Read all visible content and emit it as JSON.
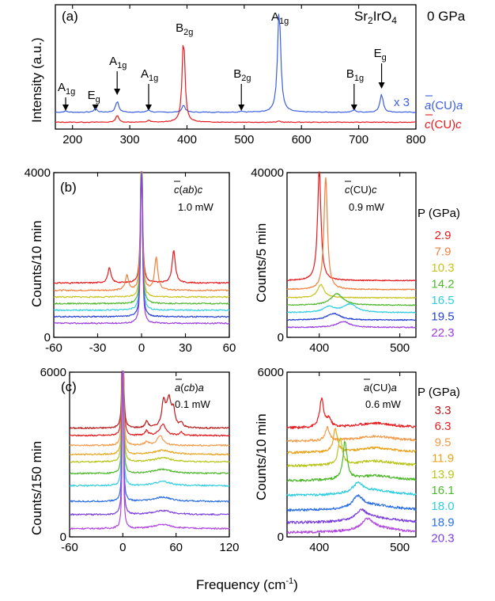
{
  "colors": {
    "p_a": [
      "#e8191d",
      "#f07f3c",
      "#c9c21a",
      "#4db82a",
      "#2fcde0",
      "#2340d8",
      "#9a3de0"
    ],
    "p_c": [
      "#b81a1a",
      "#e8191d",
      "#f39a48",
      "#e8a41c",
      "#b8c51a",
      "#4db82a",
      "#2fcde0",
      "#2a6ee6",
      "#7b3ee0",
      "#b146e0"
    ],
    "blue": "#3b5fe0",
    "red": "#e8191d"
  },
  "panel_a": {
    "label": "(a)",
    "sample": "Sr2IrO4",
    "pressure": "0 GPa",
    "ylabel": "Intensity (a.u.)",
    "scale_note": "x 3",
    "legend": [
      {
        "text": "a(CU)a",
        "bar": "a",
        "color": "#3b5fe0"
      },
      {
        "text": "c(CU)c",
        "bar": "c",
        "color": "#e8191d"
      }
    ],
    "peak_labels": [
      {
        "sym": "A",
        "sub": "1g",
        "x": 188
      },
      {
        "sym": "E",
        "sub": "g",
        "x": 240
      },
      {
        "sym": "A",
        "sub": "1g",
        "x": 278
      },
      {
        "sym": "A",
        "sub": "1g",
        "x": 333
      },
      {
        "sym": "B",
        "sub": "2g",
        "x": 394
      },
      {
        "sym": "B",
        "sub": "2g",
        "x": 495
      },
      {
        "sym": "A",
        "sub": "1g",
        "x": 561
      },
      {
        "sym": "B",
        "sub": "1g",
        "x": 692
      },
      {
        "sym": "E",
        "sub": "g",
        "x": 740
      }
    ]
  },
  "panel_b_left": {
    "label": "(b)",
    "config": "c(ab)c",
    "bar": "c",
    "power": "1.0 mW",
    "ylabel": "Counts/10 min"
  },
  "panel_b_right": {
    "config": "c(CU)c",
    "bar": "c",
    "power": "0.9 mW",
    "ylabel": "Counts/5 min"
  },
  "panel_c_left": {
    "label": "(c)",
    "config": "a(cb)a",
    "bar": "a",
    "power": "0.1 mW",
    "ylabel": "Counts/150 min"
  },
  "panel_c_right": {
    "config": "a(CU)a",
    "bar": "a",
    "power": "0.6 mW",
    "ylabel": "Counts/10 min"
  },
  "legend_b": {
    "title": "P (GPa)",
    "values": [
      "2.9",
      "7.9",
      "10.3",
      "14.2",
      "16.5",
      "19.5",
      "22.3"
    ]
  },
  "legend_c": {
    "title": "P (GPa)",
    "values": [
      "3.3",
      "6.3",
      "9.5",
      "11.9",
      "13.9",
      "16.1",
      "18.0",
      "18.9",
      "20.3"
    ]
  },
  "xlabel": "Frequency (cm",
  "xlabel_sup": "-1",
  "xlabel_end": ")",
  "chart_data": [
    {
      "type": "line",
      "panel": "a",
      "xlim": [
        170,
        800
      ],
      "ylim": [
        0,
        1
      ],
      "xticks": [
        "200",
        "300",
        "400",
        "500",
        "600",
        "700",
        "800"
      ],
      "series": [
        {
          "name": "a(CU)a",
          "color": "#3b5fe0",
          "peaks": [
            [
              188,
              0.01
            ],
            [
              240,
              0.03
            ],
            [
              278,
              0.09
            ],
            [
              333,
              0.02
            ],
            [
              394,
              0.06
            ],
            [
              495,
              0.01
            ],
            [
              561,
              0.85
            ],
            [
              692,
              0.02
            ],
            [
              740,
              0.15
            ]
          ]
        },
        {
          "name": "c(CU)c",
          "color": "#e8191d",
          "peaks": [
            [
              278,
              0.06
            ],
            [
              333,
              0.015
            ],
            [
              394,
              0.71
            ],
            [
              561,
              0.01
            ]
          ]
        }
      ]
    },
    {
      "type": "line",
      "panel": "b-left",
      "xlim": [
        -60,
        60
      ],
      "ylim": [
        0,
        4000
      ],
      "xticks": [
        "-60",
        "-30",
        "0",
        "30",
        "60"
      ],
      "yticks": [
        "0",
        "4000"
      ],
      "series_pressure_GPa": [
        2.9,
        7.9,
        10.3,
        14.2,
        16.5,
        19.5,
        22.3
      ],
      "peak_x_cm1": [
        22,
        10,
        null,
        null,
        null,
        null,
        null
      ]
    },
    {
      "type": "line",
      "panel": "b-right",
      "xlim": [
        360,
        520
      ],
      "ylim": [
        0,
        40000
      ],
      "xticks": [
        "400",
        "500"
      ],
      "yticks": [
        "0",
        "40000"
      ],
      "series_pressure_GPa": [
        2.9,
        7.9,
        10.3,
        14.2,
        16.5,
        19.5,
        22.3
      ],
      "peak_x_cm1": [
        400,
        408,
        402,
        422,
        438,
        418,
        430
      ]
    },
    {
      "type": "line",
      "panel": "c-left",
      "xlim": [
        -60,
        120
      ],
      "ylim": [
        0,
        6000
      ],
      "xticks": [
        "-60",
        "0",
        "60",
        "120"
      ],
      "yticks": [
        "0",
        "6000"
      ],
      "series_pressure_GPa": [
        3.3,
        6.3,
        9.5,
        11.9,
        13.9,
        16.1,
        18.0,
        18.9,
        20.3
      ]
    },
    {
      "type": "line",
      "panel": "c-right",
      "xlim": [
        360,
        520
      ],
      "ylim": [
        0,
        6000
      ],
      "xticks": [
        "400",
        "500"
      ],
      "yticks": [
        "0",
        "6000"
      ],
      "series_pressure_GPa": [
        3.3,
        6.3,
        9.5,
        11.9,
        13.9,
        16.1,
        18.0,
        18.9,
        20.3
      ],
      "peak_x_cm1": [
        403,
        410,
        420,
        426,
        432,
        448,
        448,
        452,
        460
      ]
    }
  ]
}
